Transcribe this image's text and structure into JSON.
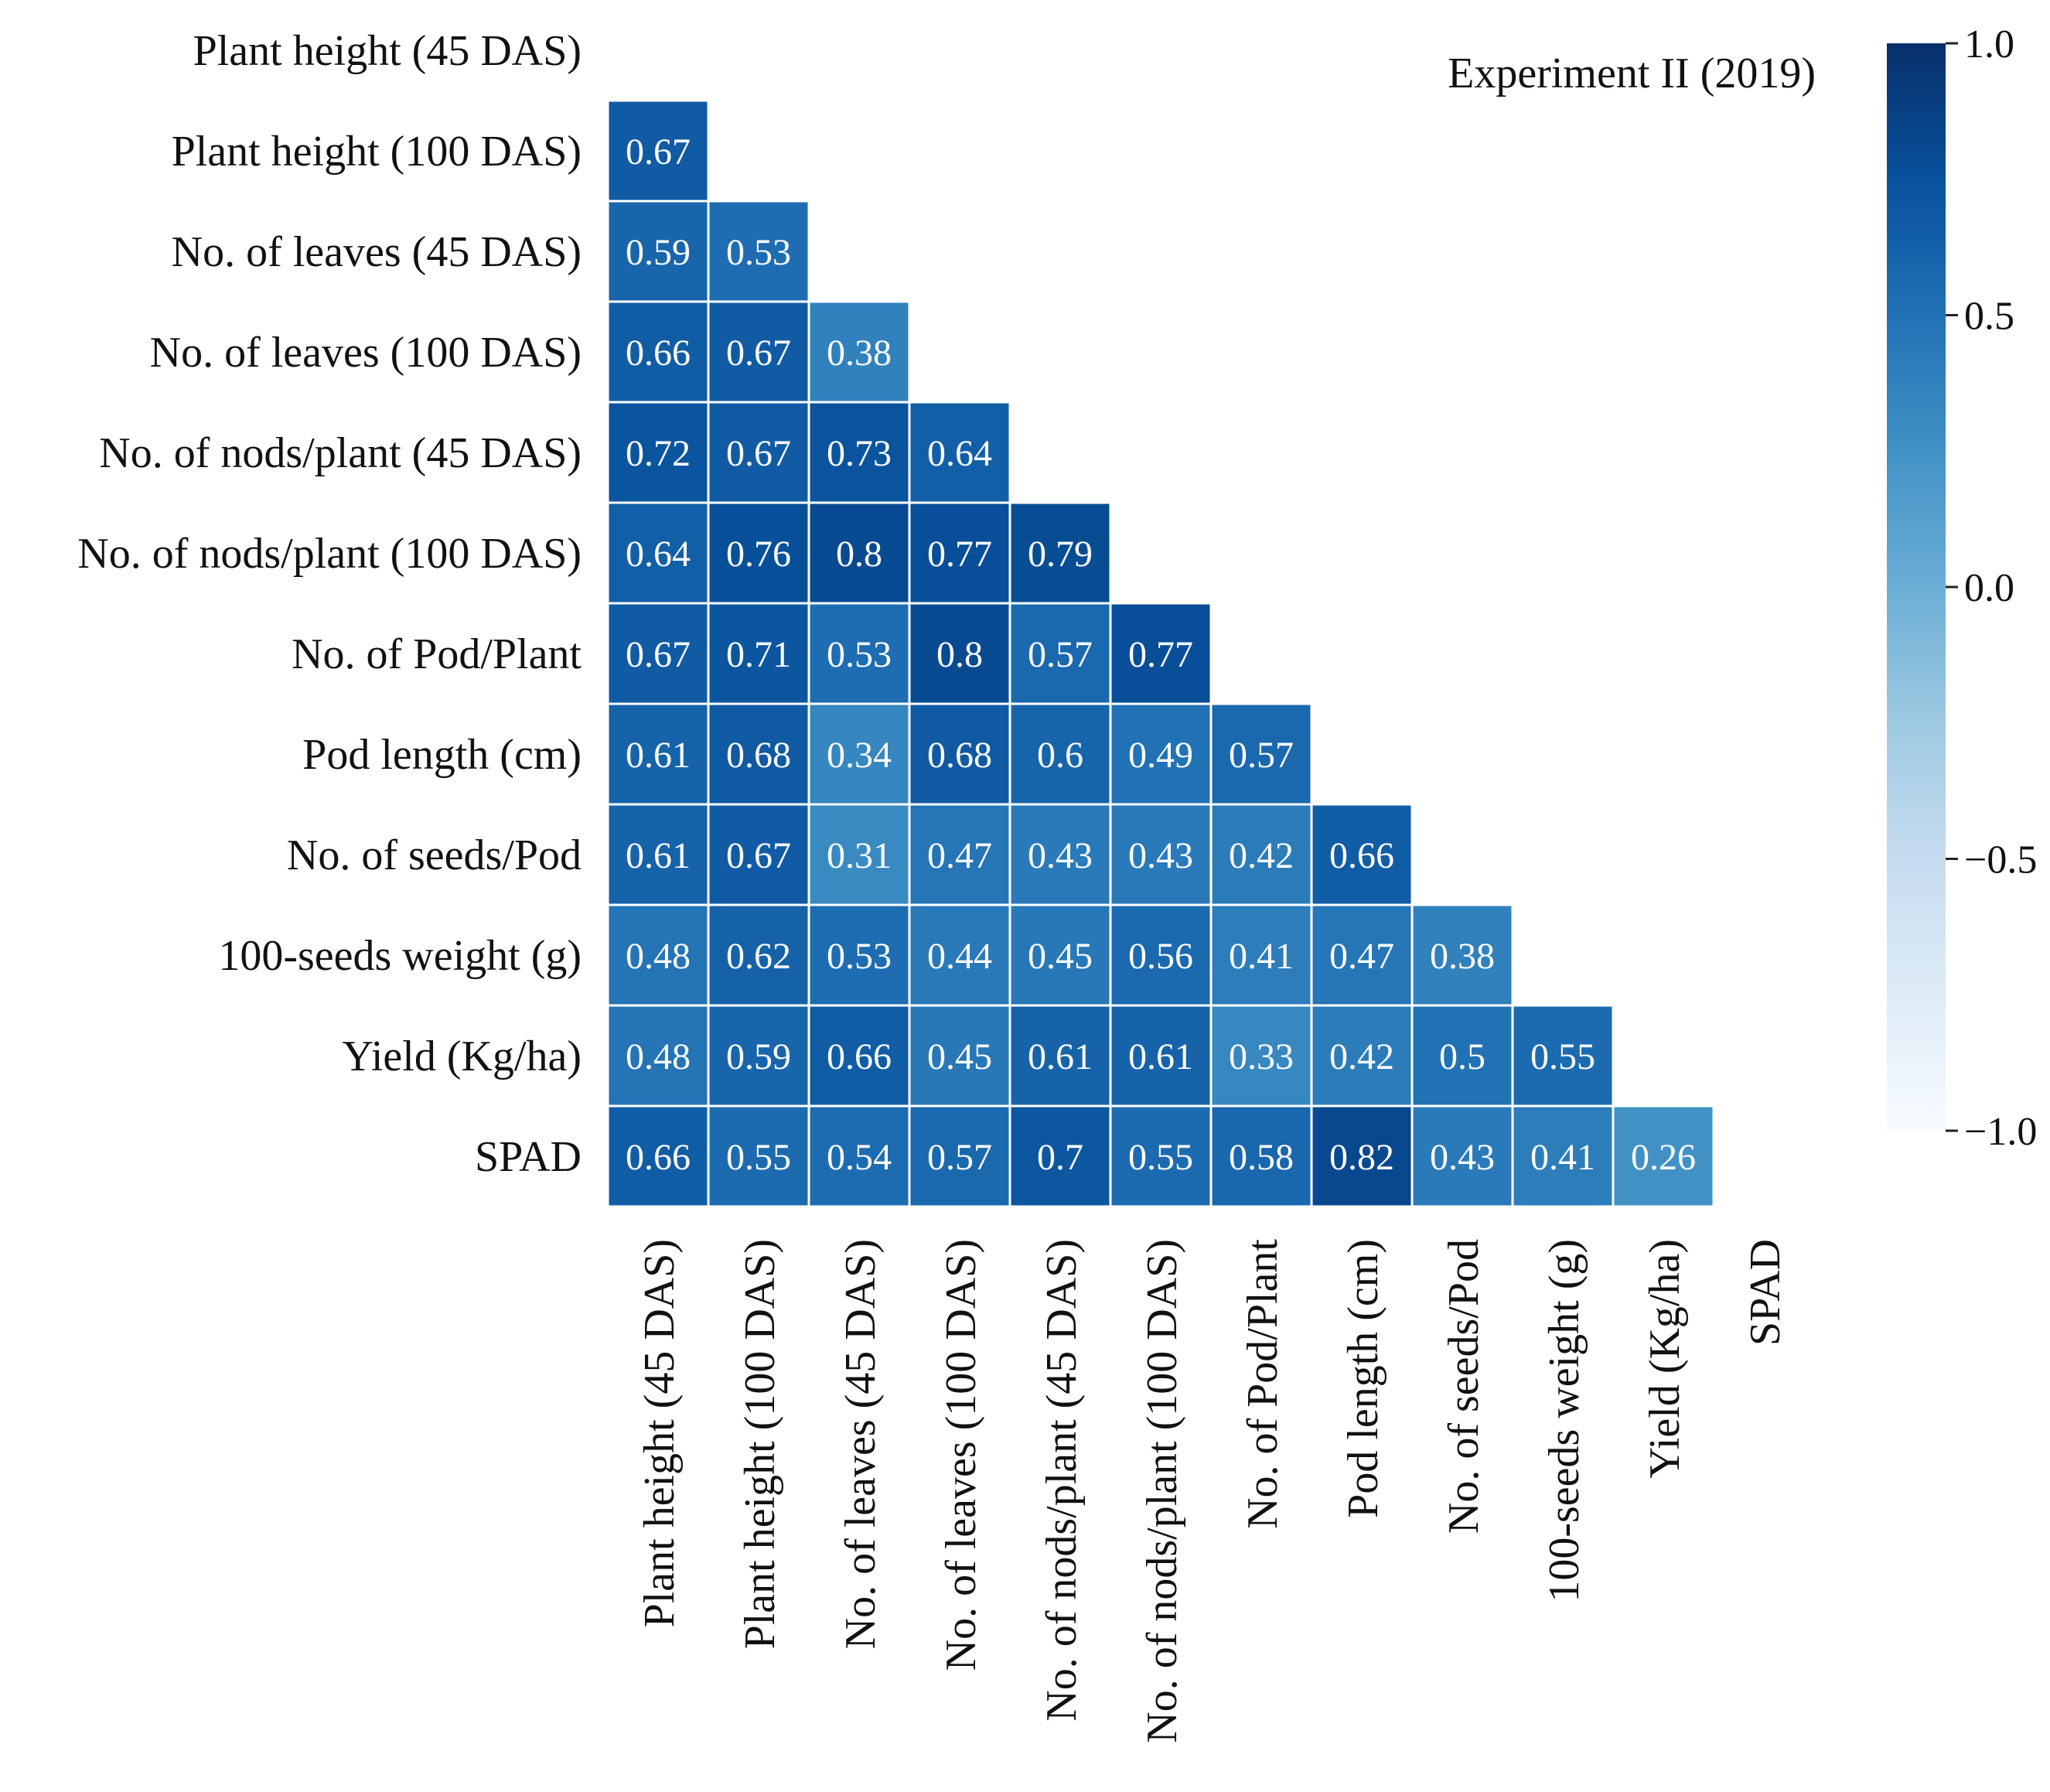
{
  "chart_data": {
    "type": "heatmap",
    "title": "Experiment II (2019)",
    "variables": [
      "Plant height (45 DAS)",
      "Plant height (100 DAS)",
      "No. of leaves (45 DAS)",
      "No. of leaves (100 DAS)",
      "No. of nods/plant (45 DAS)",
      "No. of nods/plant (100 DAS)",
      "No. of Pod/Plant",
      "Pod length (cm)",
      "No. of seeds/Pod",
      "100-seeds weight (g)",
      "Yield (Kg/ha)",
      "SPAD"
    ],
    "lower_triangle": [
      [],
      [
        0.67
      ],
      [
        0.59,
        0.53
      ],
      [
        0.66,
        0.67,
        0.38
      ],
      [
        0.72,
        0.67,
        0.73,
        0.64
      ],
      [
        0.64,
        0.76,
        0.8,
        0.77,
        0.79
      ],
      [
        0.67,
        0.71,
        0.53,
        0.8,
        0.57,
        0.77
      ],
      [
        0.61,
        0.68,
        0.34,
        0.68,
        0.6,
        0.49,
        0.57
      ],
      [
        0.61,
        0.67,
        0.31,
        0.47,
        0.43,
        0.43,
        0.42,
        0.66
      ],
      [
        0.48,
        0.62,
        0.53,
        0.44,
        0.45,
        0.56,
        0.41,
        0.47,
        0.38
      ],
      [
        0.48,
        0.59,
        0.66,
        0.45,
        0.61,
        0.61,
        0.33,
        0.42,
        0.5,
        0.55
      ],
      [
        0.66,
        0.55,
        0.54,
        0.57,
        0.7,
        0.55,
        0.58,
        0.82,
        0.43,
        0.41,
        0.26
      ]
    ],
    "colorbar": {
      "range": [
        -1.0,
        1.0
      ],
      "ticks": [
        1.0,
        0.5,
        0.0,
        -0.5,
        -1.0
      ],
      "tick_labels": [
        "1.0",
        "0.5",
        "0.0",
        "−0.5",
        "−1.0"
      ],
      "colormap": "Blues"
    },
    "colors": {
      "cell_border": "#ffffff",
      "cell_text": "#ffffff",
      "label_text": "#111111",
      "cmap_stops": [
        "#f7fbff",
        "#deebf7",
        "#c6dbef",
        "#9ecae1",
        "#6baed6",
        "#4292c6",
        "#2171b5",
        "#08519c",
        "#08306b"
      ]
    },
    "mask": "upper triangle incl. diagonal"
  }
}
